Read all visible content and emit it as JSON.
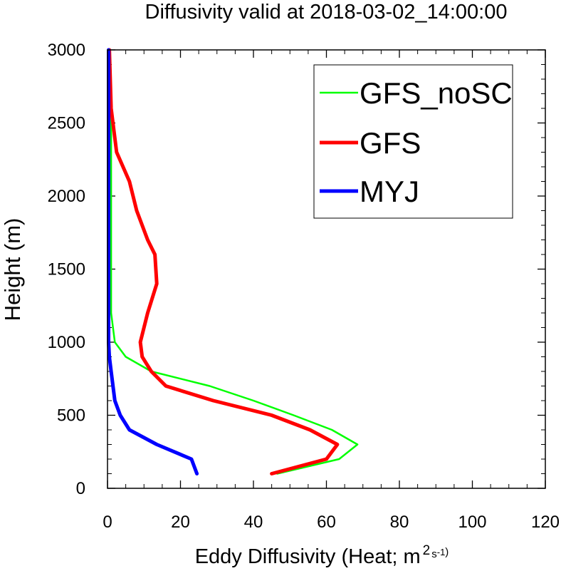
{
  "chart_data": {
    "type": "line",
    "title": "Diffusivity valid at 2018-03-02_14:00:00",
    "xlabel": "Eddy Diffusivity (Heat; m",
    "xlabel_units_sup": "2",
    "xlabel_units_s": "s",
    "xlabel_units_exp": "-1",
    "xlabel_close": ")",
    "ylabel": "Height (m)",
    "xlim": [
      0,
      120
    ],
    "ylim": [
      0,
      3000
    ],
    "xticks": [
      0,
      20,
      40,
      60,
      80,
      100,
      120
    ],
    "yticks": [
      0,
      500,
      1000,
      1500,
      2000,
      2500,
      3000
    ],
    "xtick_labels": [
      "0",
      "20",
      "40",
      "60",
      "80",
      "100",
      "120"
    ],
    "ytick_labels": [
      "0",
      "500",
      "1000",
      "1500",
      "2000",
      "2500",
      "3000"
    ],
    "grid": false,
    "legend_position": "top-right",
    "series": [
      {
        "name": "GFS_noSC",
        "color": "#00ff00",
        "width": "thin",
        "points": [
          [
            46.5,
            100
          ],
          [
            63.5,
            200
          ],
          [
            68.5,
            300
          ],
          [
            61.5,
            400
          ],
          [
            51,
            500
          ],
          [
            40,
            600
          ],
          [
            28,
            700
          ],
          [
            12,
            800
          ],
          [
            5,
            900
          ],
          [
            2,
            1000
          ],
          [
            1,
            1200
          ],
          [
            1,
            1500
          ],
          [
            1,
            2000
          ],
          [
            1,
            2500
          ],
          [
            0.5,
            3000
          ]
        ]
      },
      {
        "name": "GFS",
        "color": "#ff0000",
        "width": "thick",
        "points": [
          [
            45,
            100
          ],
          [
            60,
            200
          ],
          [
            63,
            300
          ],
          [
            55.5,
            400
          ],
          [
            45,
            500
          ],
          [
            29,
            600
          ],
          [
            16,
            700
          ],
          [
            12,
            800
          ],
          [
            9.5,
            900
          ],
          [
            9,
            1000
          ],
          [
            11,
            1200
          ],
          [
            13.5,
            1400
          ],
          [
            13,
            1600
          ],
          [
            11,
            1700
          ],
          [
            8,
            1900
          ],
          [
            6,
            2100
          ],
          [
            2.5,
            2300
          ],
          [
            1,
            2600
          ],
          [
            0.5,
            3000
          ]
        ]
      },
      {
        "name": "MYJ",
        "color": "#0000ff",
        "width": "thick",
        "points": [
          [
            24.5,
            100
          ],
          [
            23,
            200
          ],
          [
            13.5,
            300
          ],
          [
            6,
            400
          ],
          [
            3.5,
            500
          ],
          [
            2,
            600
          ],
          [
            1,
            800
          ],
          [
            0.5,
            900
          ],
          [
            0.3,
            1000
          ],
          [
            0.3,
            1500
          ],
          [
            0.3,
            2000
          ],
          [
            0.3,
            2500
          ],
          [
            0.3,
            3000
          ]
        ]
      }
    ]
  }
}
